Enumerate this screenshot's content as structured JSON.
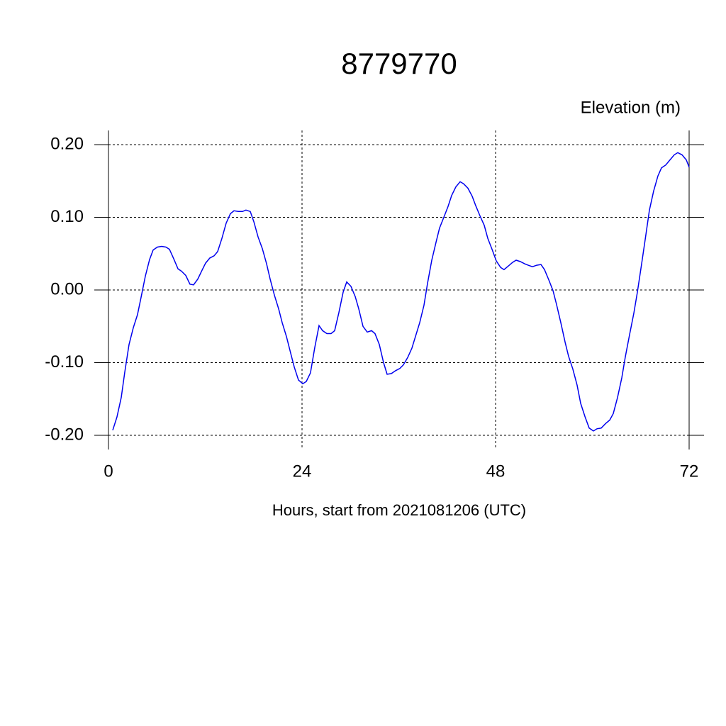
{
  "chart_data": {
    "type": "line",
    "title": "8779770",
    "subtitle": "Elevation (m)",
    "x_label": "Hours, start from 2021081206 (UTC)",
    "xlim": [
      0,
      72
    ],
    "xticks": [
      0,
      24,
      48,
      72
    ],
    "ylim": [
      -0.2,
      0.2
    ],
    "yticks": [
      {
        "value": 0.2,
        "label": "0.20"
      },
      {
        "value": 0.1,
        "label": "0.10"
      },
      {
        "value": 0,
        "label": "0.00"
      },
      {
        "value": -0.1,
        "label": "-0.10"
      },
      {
        "value": -0.2,
        "label": "-0.20"
      }
    ],
    "grid": true,
    "x": [
      0.53,
      1.05,
      1.58,
      2.02,
      2.55,
      3.08,
      3.6,
      4.04,
      4.57,
      5.1,
      5.54,
      6.07,
      6.59,
      7.12,
      7.56,
      8.09,
      8.62,
      9.05,
      9.58,
      10.1,
      10.55,
      11.08,
      11.6,
      12.04,
      12.57,
      13.1,
      13.54,
      14.07,
      14.59,
      15.12,
      15.56,
      16.09,
      16.62,
      17.05,
      17.58,
      18.02,
      18.55,
      19.08,
      19.6,
      20.04,
      20.57,
      21.1,
      21.54,
      22.07,
      22.59,
      23.03,
      23.56,
      24.09,
      24.53,
      25.05,
      25.58,
      26.11,
      26.55,
      27.08,
      27.6,
      28.04,
      28.57,
      29.1,
      29.54,
      30.07,
      30.59,
      31.03,
      31.56,
      32.09,
      32.62,
      33.05,
      33.58,
      34.11,
      34.55,
      35.08,
      35.6,
      36.13,
      36.57,
      37.1,
      37.63,
      38.07,
      38.59,
      39.12,
      39.56,
      40.09,
      40.62,
      41.05,
      41.58,
      42.11,
      42.55,
      43.08,
      43.6,
      44.04,
      44.57,
      45.1,
      45.54,
      46.07,
      46.59,
      47.03,
      47.56,
      48.09,
      48.62,
      49.05,
      49.58,
      50.11,
      50.55,
      51.08,
      51.6,
      52.04,
      52.57,
      53.1,
      53.63,
      54.07,
      54.59,
      55.12,
      55.56,
      56.09,
      56.62,
      57.05,
      57.58,
      58.11,
      58.55,
      59.08,
      59.6,
      60.13,
      60.57,
      61.1,
      61.63,
      62.15,
      62.59,
      63.12,
      63.65,
      64.09,
      64.62,
      65.14,
      65.58,
      66.11,
      66.64,
      67.08,
      67.6,
      68.13,
      68.57,
      69.1,
      69.63,
      70.15,
      70.59,
      71.12,
      71.65,
      72.0
    ],
    "series": [
      {
        "name": "Elevation",
        "color": "#0000ee",
        "values": [
          -0.193,
          -0.175,
          -0.148,
          -0.113,
          -0.075,
          -0.052,
          -0.034,
          -0.01,
          0.019,
          0.042,
          0.055,
          0.059,
          0.06,
          0.059,
          0.056,
          0.043,
          0.029,
          0.026,
          0.02,
          0.008,
          0.007,
          0.015,
          0.027,
          0.037,
          0.044,
          0.047,
          0.053,
          0.071,
          0.092,
          0.105,
          0.109,
          0.108,
          0.108,
          0.11,
          0.108,
          0.094,
          0.073,
          0.057,
          0.036,
          0.015,
          -0.007,
          -0.026,
          -0.045,
          -0.064,
          -0.087,
          -0.106,
          -0.124,
          -0.129,
          -0.126,
          -0.114,
          -0.079,
          -0.049,
          -0.056,
          -0.06,
          -0.06,
          -0.056,
          -0.031,
          -0.003,
          0.011,
          0.005,
          -0.009,
          -0.026,
          -0.05,
          -0.058,
          -0.056,
          -0.06,
          -0.075,
          -0.1,
          -0.116,
          -0.115,
          -0.111,
          -0.108,
          -0.103,
          -0.093,
          -0.08,
          -0.064,
          -0.045,
          -0.021,
          0.009,
          0.041,
          0.066,
          0.085,
          0.1,
          0.115,
          0.13,
          0.142,
          0.149,
          0.146,
          0.14,
          0.129,
          0.116,
          0.102,
          0.089,
          0.071,
          0.056,
          0.04,
          0.031,
          0.028,
          0.033,
          0.038,
          0.041,
          0.039,
          0.036,
          0.034,
          0.032,
          0.034,
          0.035,
          0.028,
          0.014,
          -0.001,
          -0.02,
          -0.045,
          -0.072,
          -0.091,
          -0.109,
          -0.131,
          -0.156,
          -0.174,
          -0.19,
          -0.194,
          -0.191,
          -0.19,
          -0.184,
          -0.179,
          -0.17,
          -0.148,
          -0.121,
          -0.092,
          -0.061,
          -0.032,
          -0.003,
          0.036,
          0.076,
          0.11,
          0.136,
          0.157,
          0.168,
          0.172,
          0.179,
          0.186,
          0.189,
          0.186,
          0.179,
          0.169
        ]
      }
    ]
  }
}
